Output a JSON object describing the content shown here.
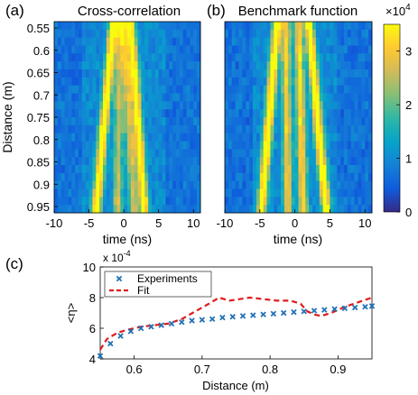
{
  "chart_data": [
    {
      "type": "heatmap",
      "panel_label": "(a)",
      "title": "Cross-correlation",
      "xlabel": "time (ns)",
      "ylabel": "Distance (m)",
      "xlim": [
        -10,
        11
      ],
      "ylim": [
        0.55,
        0.95
      ],
      "x_ticks": [
        "-10",
        "-5",
        "0",
        "5",
        "10"
      ],
      "y_ticks": [
        "0.55",
        "0.6",
        "0.65",
        "0.7",
        "0.75",
        "0.8",
        "0.85",
        "0.9",
        "0.95"
      ],
      "ridges": [
        {
          "x_at_top": -1.5,
          "x_at_bottom": -4.0,
          "intensity": 1.0
        },
        {
          "x_at_top": -0.6,
          "x_at_bottom": -0.9,
          "intensity": 0.55
        },
        {
          "x_at_top": 0.0,
          "x_at_bottom": 1.5,
          "intensity": 0.6
        },
        {
          "x_at_top": 1.0,
          "x_at_bottom": 3.0,
          "intensity": 0.9
        }
      ]
    },
    {
      "type": "heatmap",
      "panel_label": "(b)",
      "title": "Benchmark function",
      "xlabel": "time (ns)",
      "ylabel": "",
      "xlim": [
        -10,
        11
      ],
      "ylim": [
        0.55,
        0.95
      ],
      "x_ticks": [
        "-10",
        "-5",
        "0",
        "5",
        "10"
      ],
      "ridges": [
        {
          "x_at_top": -2.5,
          "x_at_bottom": -4.8,
          "intensity": 1.0
        },
        {
          "x_at_top": -1.3,
          "x_at_bottom": -1.0,
          "intensity": 0.7
        },
        {
          "x_at_top": 0.5,
          "x_at_bottom": 1.2,
          "intensity": 0.75
        },
        {
          "x_at_top": 2.0,
          "x_at_bottom": 4.5,
          "intensity": 1.0
        }
      ],
      "colorbar": {
        "ticks": [
          {
            "value": 0,
            "label": "0"
          },
          {
            "value": 10000,
            "label": "1"
          },
          {
            "value": 20000,
            "label": "2"
          },
          {
            "value": 30000,
            "label": "3"
          }
        ],
        "range": [
          0,
          35000
        ],
        "multiplier_base": "×10",
        "multiplier_exp": "4",
        "colors": [
          "#352a87",
          "#0f5cdd",
          "#1481d6",
          "#06a4ca",
          "#2eb7a4",
          "#87bf77",
          "#d1bb59",
          "#fec832",
          "#f9fb0e"
        ]
      }
    },
    {
      "type": "scatter",
      "panel_label": "(c)",
      "xlabel": "Distance (m)",
      "ylabel": "<η>",
      "xlim": [
        0.55,
        0.95
      ],
      "ylim": [
        4,
        10
      ],
      "x_ticks": [
        "0.6",
        "0.7",
        "0.8",
        "0.9"
      ],
      "y_ticks": [
        "4",
        "6",
        "8",
        "10"
      ],
      "y_multiplier_base": "x 10",
      "y_multiplier_exp": "-4",
      "series": [
        {
          "name": "Experiments",
          "style": "marker-x",
          "color": "#2171b5",
          "x": [
            0.55,
            0.565,
            0.58,
            0.595,
            0.61,
            0.625,
            0.64,
            0.655,
            0.67,
            0.685,
            0.7,
            0.715,
            0.73,
            0.745,
            0.76,
            0.775,
            0.79,
            0.805,
            0.82,
            0.835,
            0.85,
            0.865,
            0.88,
            0.895,
            0.91,
            0.925,
            0.94,
            0.95
          ],
          "y": [
            4.2,
            5.0,
            5.5,
            5.8,
            6.0,
            6.1,
            6.2,
            6.3,
            6.4,
            6.5,
            6.55,
            6.6,
            6.7,
            6.75,
            6.8,
            6.85,
            6.9,
            6.95,
            7.0,
            7.05,
            7.1,
            7.15,
            7.2,
            7.25,
            7.3,
            7.35,
            7.4,
            7.45
          ]
        },
        {
          "name": "Fit",
          "style": "dashed-line",
          "color": "#e0191b",
          "x": [
            0.55,
            0.56,
            0.575,
            0.59,
            0.61,
            0.63,
            0.65,
            0.67,
            0.69,
            0.71,
            0.725,
            0.74,
            0.755,
            0.77,
            0.79,
            0.81,
            0.83,
            0.845,
            0.855,
            0.865,
            0.875,
            0.89,
            0.91,
            0.93,
            0.95
          ],
          "y": [
            4.6,
            5.3,
            5.7,
            5.9,
            6.1,
            6.2,
            6.3,
            6.6,
            7.1,
            7.6,
            8.0,
            7.8,
            7.9,
            8.0,
            7.9,
            7.8,
            7.8,
            7.6,
            7.1,
            6.9,
            6.8,
            7.0,
            7.4,
            7.7,
            8.0
          ]
        }
      ],
      "legend_position": "top-left"
    }
  ]
}
